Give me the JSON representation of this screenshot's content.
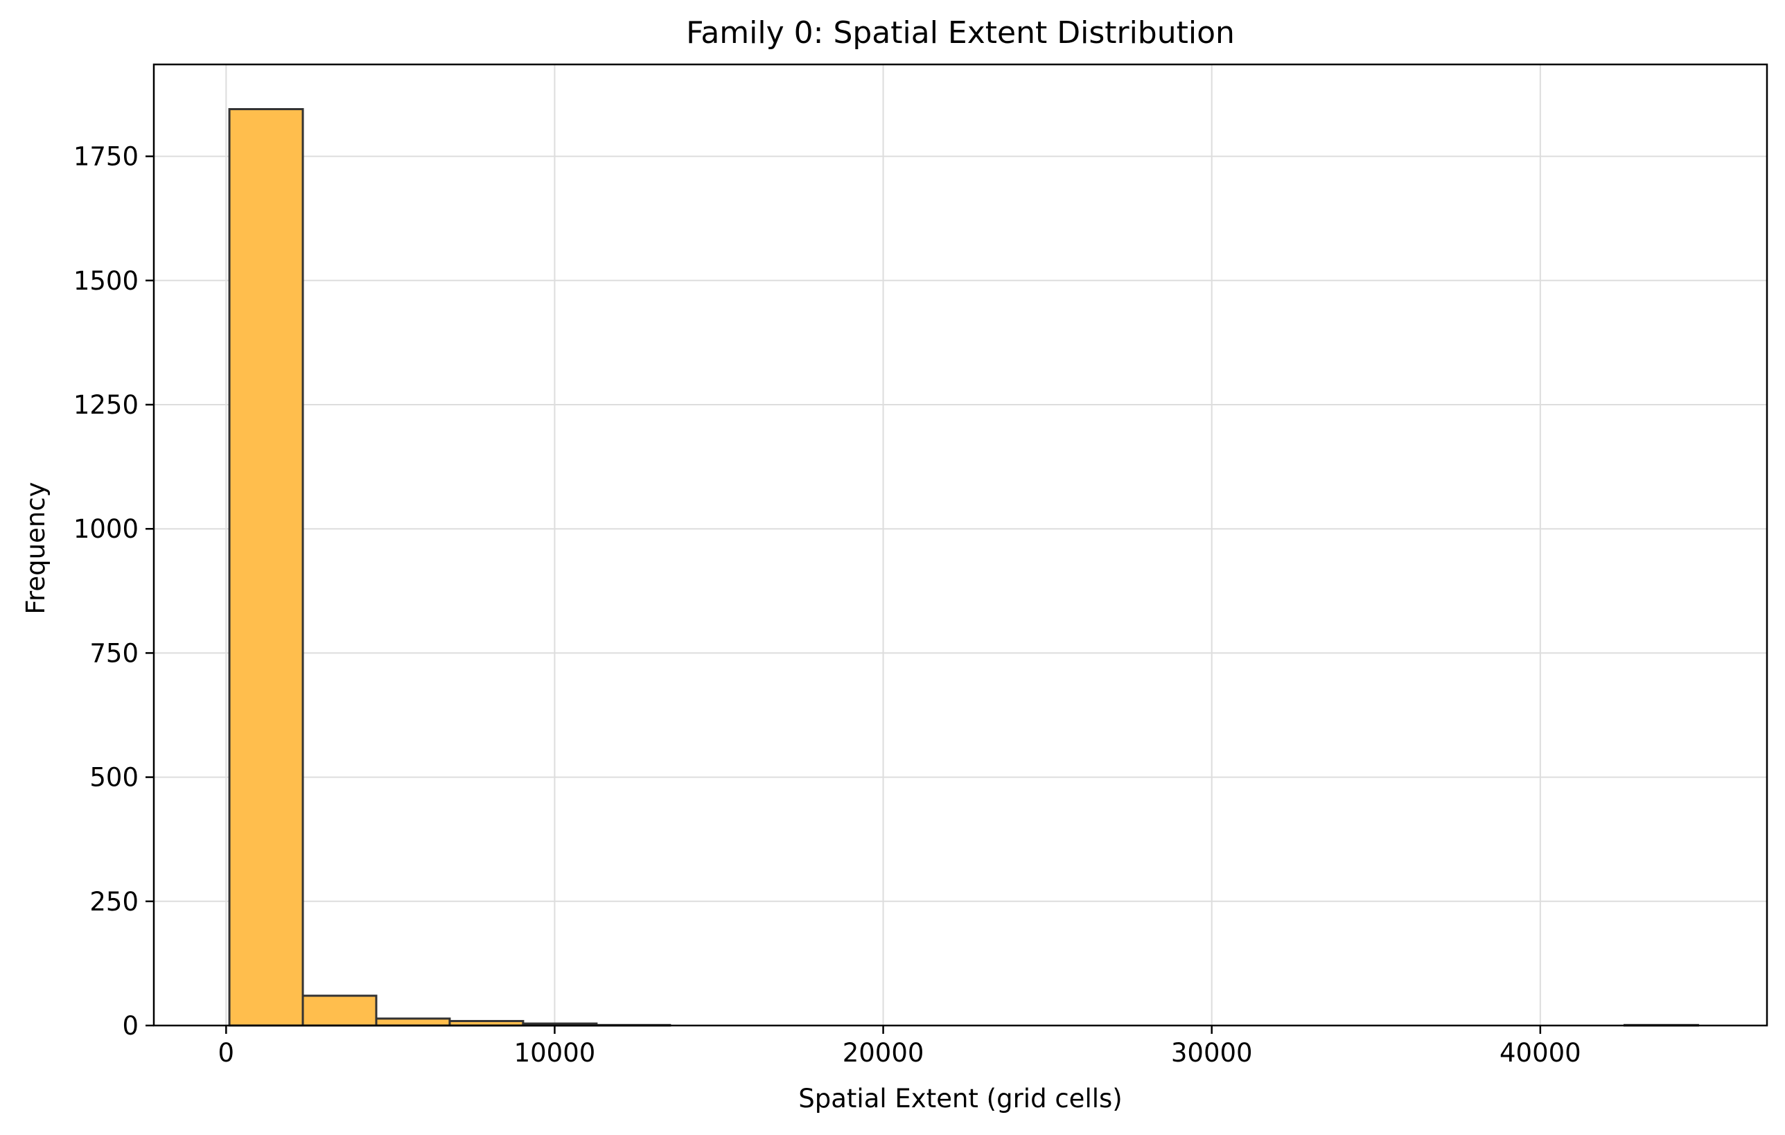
{
  "chart_data": {
    "type": "bar",
    "title": "Family 0: Spatial Extent Distribution",
    "xlabel": "Spatial Extent (grid cells)",
    "ylabel": "Frequency",
    "xlim": [
      -2200,
      46900
    ],
    "ylim": [
      0,
      1935
    ],
    "xticks": [
      0,
      10000,
      20000,
      30000,
      40000
    ],
    "yticks": [
      0,
      250,
      500,
      750,
      1000,
      1250,
      1500,
      1750
    ],
    "grid": true,
    "bins": [
      {
        "x0": 100,
        "x1": 2335,
        "value": 1845
      },
      {
        "x0": 2335,
        "x1": 4570,
        "value": 60
      },
      {
        "x0": 4570,
        "x1": 6805,
        "value": 14
      },
      {
        "x0": 6805,
        "x1": 9040,
        "value": 9
      },
      {
        "x0": 9040,
        "x1": 11275,
        "value": 4
      },
      {
        "x0": 11275,
        "x1": 13510,
        "value": 1
      },
      {
        "x0": 13510,
        "x1": 15745,
        "value": 0
      },
      {
        "x0": 15745,
        "x1": 17980,
        "value": 0
      },
      {
        "x0": 17980,
        "x1": 20215,
        "value": 0
      },
      {
        "x0": 20215,
        "x1": 22450,
        "value": 0
      },
      {
        "x0": 22450,
        "x1": 24685,
        "value": 0
      },
      {
        "x0": 24685,
        "x1": 26920,
        "value": 0
      },
      {
        "x0": 26920,
        "x1": 29155,
        "value": 0
      },
      {
        "x0": 29155,
        "x1": 31390,
        "value": 0
      },
      {
        "x0": 31390,
        "x1": 33625,
        "value": 0
      },
      {
        "x0": 33625,
        "x1": 35860,
        "value": 0
      },
      {
        "x0": 35860,
        "x1": 38095,
        "value": 0
      },
      {
        "x0": 38095,
        "x1": 40330,
        "value": 0
      },
      {
        "x0": 40330,
        "x1": 42565,
        "value": 0
      },
      {
        "x0": 42565,
        "x1": 44800,
        "value": 1
      }
    ],
    "colors": {
      "bar_fill": "#FFBE4D",
      "bar_edge": "#333333",
      "grid": "#DDDDDD",
      "axis": "#000000"
    }
  }
}
